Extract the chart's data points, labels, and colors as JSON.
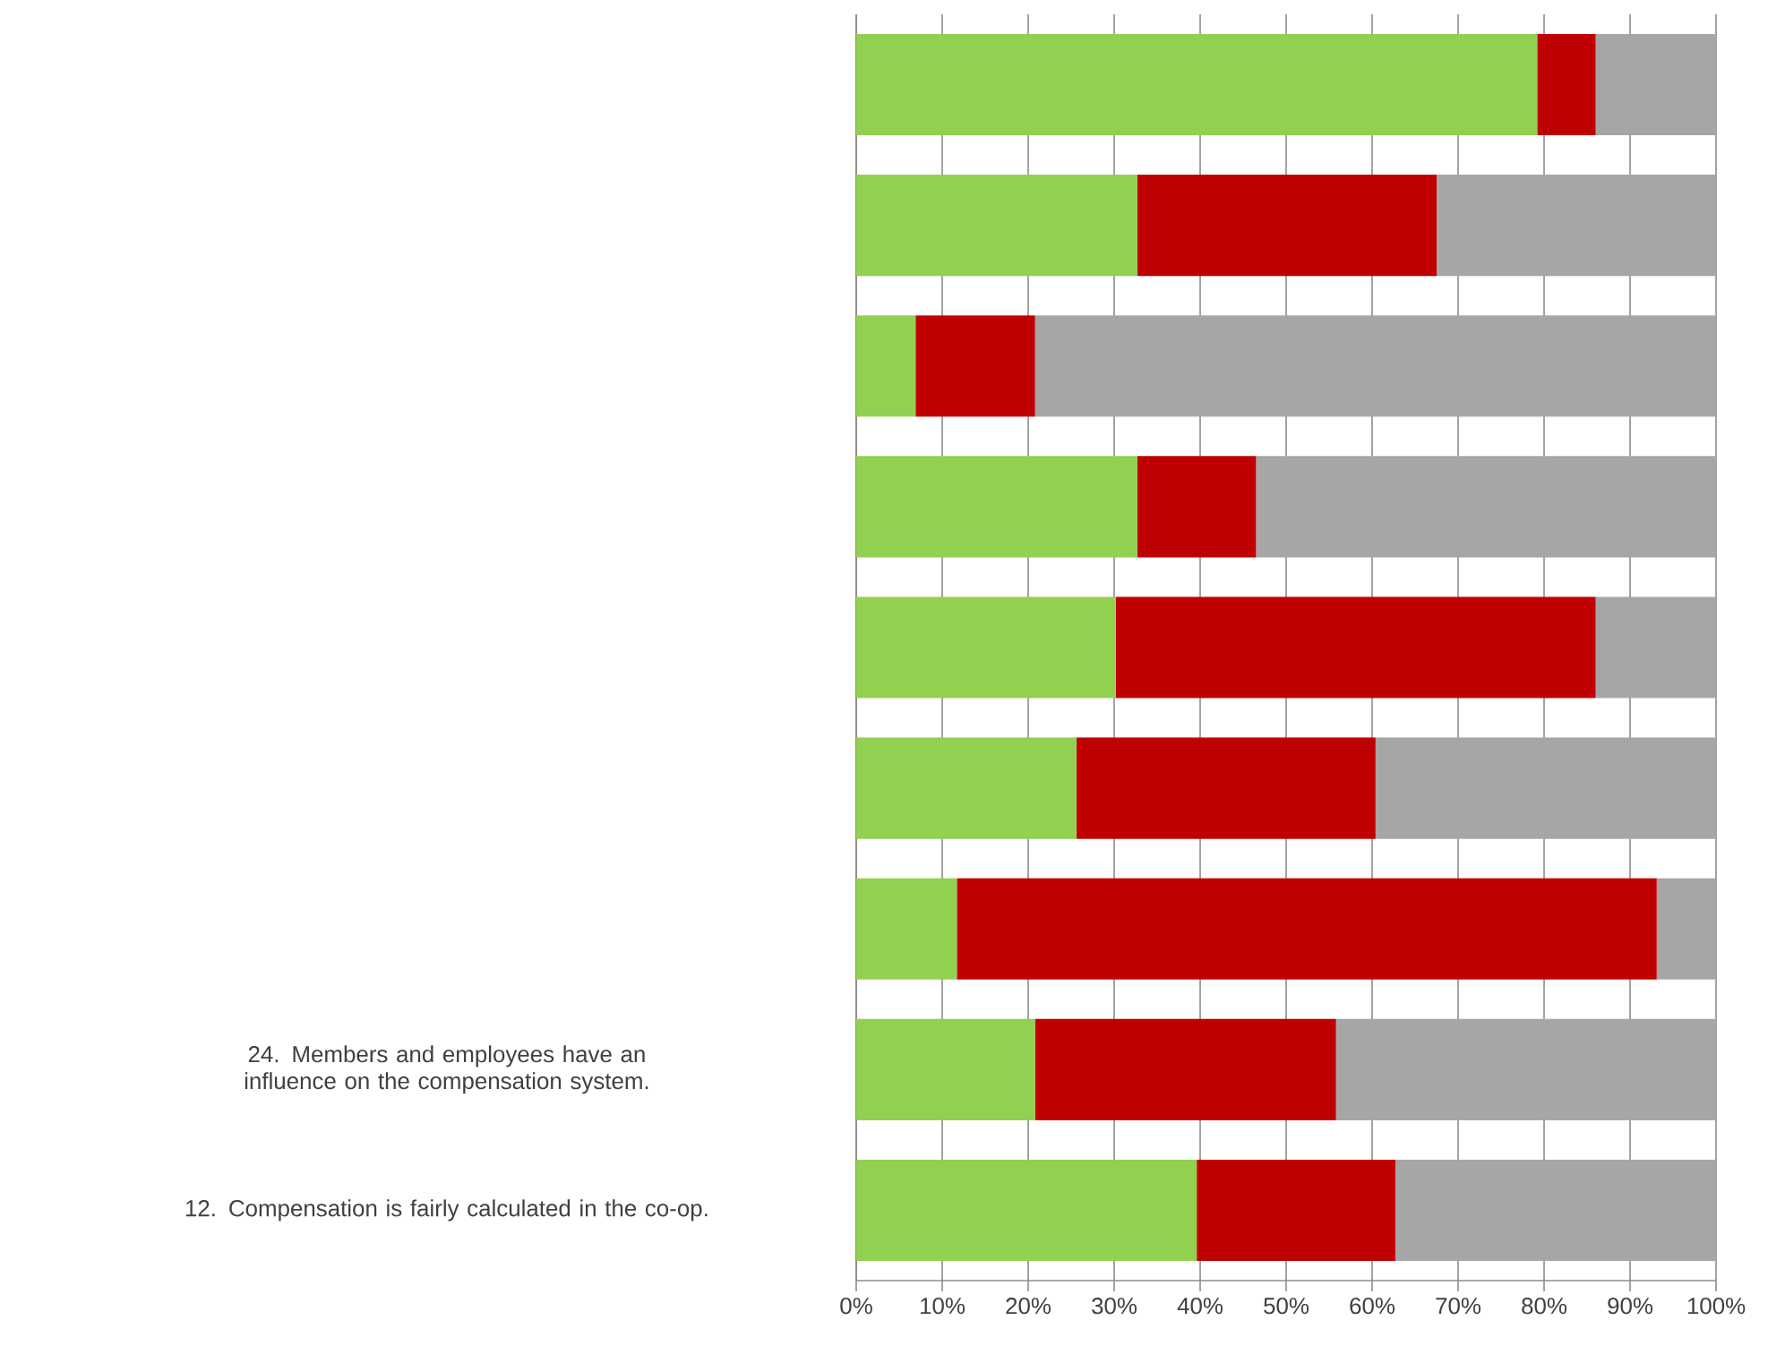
{
  "chart_data": {
    "type": "bar",
    "orientation": "horizontal",
    "stacked": true,
    "grid": "x",
    "categories": [
      null,
      null,
      null,
      null,
      null,
      null,
      null,
      "24. Members and employees have an influence on the compensation system.",
      "12. Compensation is fairly calculated in the co-op."
    ],
    "series": [
      {
        "color": "#92d050",
        "values": [
          79.2,
          32.7,
          6.9,
          32.7,
          30.2,
          25.6,
          11.7,
          20.8,
          39.6
        ]
      },
      {
        "color": "#c00000",
        "values": [
          6.8,
          34.8,
          13.9,
          13.8,
          55.8,
          34.8,
          81.4,
          35.0,
          23.1
        ]
      },
      {
        "color": "#a6a6a6",
        "values": [
          14.0,
          32.5,
          79.2,
          53.5,
          14.0,
          39.6,
          6.9,
          44.2,
          37.3
        ]
      }
    ],
    "xlim": [
      0,
      100
    ],
    "xticks": [
      {
        "value": 0,
        "label": "0%"
      },
      {
        "value": 10,
        "label": "10%"
      },
      {
        "value": 20,
        "label": "20%"
      },
      {
        "value": 30,
        "label": "30%"
      },
      {
        "value": 40,
        "label": "40%"
      },
      {
        "value": 50,
        "label": "50%"
      },
      {
        "value": 60,
        "label": "60%"
      },
      {
        "value": 70,
        "label": "70%"
      },
      {
        "value": 80,
        "label": "80%"
      },
      {
        "value": 90,
        "label": "90%"
      },
      {
        "value": 100,
        "label": "100%"
      }
    ]
  }
}
